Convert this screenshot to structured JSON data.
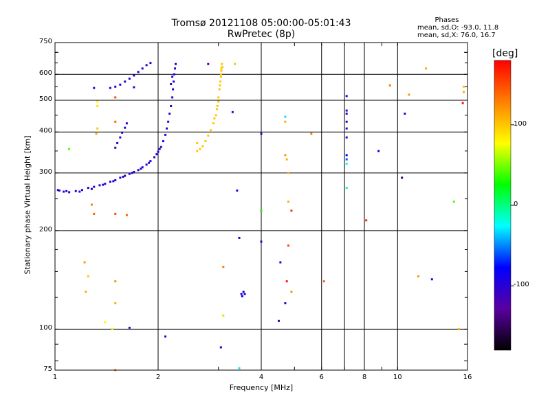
{
  "header": {
    "title": "Tromsø 20121108 05:00:00-05:01:43",
    "subtitle": "RwPretec (8p)",
    "stats_heading": "Phases",
    "stats_line1": "mean, sd,O: -93.0, 11.8",
    "stats_line2": "mean, sd,X:  76.0, 16.7"
  },
  "colorbar": {
    "unit_label": "[deg]",
    "range": [
      -180,
      180
    ],
    "ticks": [
      "100",
      "0",
      "-100"
    ],
    "tick_values": [
      100,
      0,
      -100
    ],
    "colors": [
      "#000000",
      "#5a00a0",
      "#0000ff",
      "#00ffff",
      "#00ff00",
      "#ffff00",
      "#ff8000",
      "#ff0000"
    ]
  },
  "chart_data": {
    "type": "scatter",
    "title": "Tromsø 20121108 05:00:00-05:01:43",
    "subtitle": "RwPretec (8p)",
    "xlabel": "Frequency [MHz]",
    "ylabel": "Stationary phase Virtual Height [km]",
    "x_scale": "log",
    "y_scale": "log",
    "xlim": [
      1,
      16
    ],
    "ylim": [
      75,
      750
    ],
    "x_ticks": [
      1,
      2,
      4,
      6,
      8,
      10,
      16
    ],
    "x_tick_labels": [
      "1",
      "2",
      "4",
      "6",
      "8",
      "10",
      "16"
    ],
    "y_ticks": [
      75,
      100,
      200,
      300,
      400,
      500,
      600,
      750
    ],
    "y_tick_labels": [
      "75",
      "100",
      "200",
      "300",
      "400",
      "500",
      "600",
      "750"
    ],
    "x_grid": [
      1,
      2,
      4,
      6,
      7,
      8,
      10,
      16
    ],
    "y_grid": [
      100,
      200,
      300,
      400,
      500,
      600
    ],
    "grid": true,
    "series": [
      {
        "values": [
          [
            1.03,
            265,
            -100
          ],
          [
            1.06,
            263,
            -100
          ],
          [
            1.1,
            262,
            -100
          ],
          [
            1.15,
            264,
            -100
          ],
          [
            1.2,
            266,
            -100
          ],
          [
            1.25,
            270,
            -100
          ],
          [
            1.3,
            272,
            -100
          ],
          [
            1.35,
            275,
            -100
          ],
          [
            1.4,
            278,
            -100
          ],
          [
            1.45,
            282,
            -100
          ],
          [
            1.5,
            285,
            -100
          ],
          [
            1.55,
            290,
            -100
          ],
          [
            1.6,
            294,
            -100
          ],
          [
            1.65,
            298,
            -100
          ],
          [
            1.7,
            302,
            -100
          ],
          [
            1.75,
            306,
            -100
          ],
          [
            1.8,
            312,
            -100
          ],
          [
            1.85,
            318,
            -100
          ],
          [
            1.9,
            326,
            -100
          ],
          [
            1.95,
            335,
            -100
          ],
          [
            2.0,
            348,
            -100
          ],
          [
            2.04,
            360,
            -100
          ],
          [
            2.07,
            375,
            -100
          ],
          [
            2.1,
            392,
            -100
          ],
          [
            2.12,
            410,
            -100
          ],
          [
            2.14,
            430,
            -100
          ],
          [
            2.16,
            455,
            -100
          ],
          [
            2.18,
            480,
            -100
          ],
          [
            2.2,
            510,
            -100
          ],
          [
            2.21,
            540,
            -100
          ],
          [
            2.22,
            570,
            -100
          ],
          [
            2.23,
            600,
            -100
          ],
          [
            2.24,
            625,
            -100
          ],
          [
            2.25,
            645,
            -100
          ],
          [
            2.2,
            590,
            -100
          ],
          [
            2.18,
            560,
            -100
          ],
          [
            1.5,
            358,
            -100
          ],
          [
            1.52,
            370,
            -100
          ],
          [
            1.55,
            385,
            -100
          ],
          [
            1.57,
            398,
            -100
          ],
          [
            1.6,
            412,
            -100
          ],
          [
            1.62,
            425,
            -100
          ],
          [
            1.45,
            545,
            -100
          ],
          [
            1.5,
            550,
            -100
          ],
          [
            1.55,
            558,
            -100
          ],
          [
            1.6,
            570,
            -100
          ],
          [
            1.65,
            582,
            -100
          ],
          [
            1.7,
            595,
            -100
          ],
          [
            1.75,
            610,
            -100
          ],
          [
            1.8,
            625,
            -100
          ],
          [
            1.85,
            640,
            -100
          ],
          [
            1.9,
            650,
            -100
          ],
          [
            1.3,
            545,
            -100
          ],
          [
            1.7,
            548,
            -100
          ],
          [
            1.02,
            266,
            -100
          ],
          [
            1.08,
            264,
            -100
          ],
          [
            1.18,
            263,
            -100
          ],
          [
            1.28,
            268,
            -100
          ],
          [
            1.38,
            276,
            -100
          ],
          [
            1.48,
            283,
            -100
          ],
          [
            1.58,
            292,
            -100
          ],
          [
            1.68,
            300,
            -100
          ],
          [
            1.78,
            309,
            -100
          ],
          [
            1.88,
            322,
            -100
          ],
          [
            1.98,
            342,
            -100
          ],
          [
            2.02,
            355,
            -100
          ]
        ]
      },
      {
        "values": [
          [
            2.6,
            350,
            100
          ],
          [
            2.7,
            362,
            100
          ],
          [
            2.75,
            375,
            100
          ],
          [
            2.8,
            390,
            100
          ],
          [
            2.85,
            405,
            100
          ],
          [
            2.9,
            425,
            100
          ],
          [
            2.95,
            450,
            100
          ],
          [
            2.98,
            480,
            100
          ],
          [
            3.0,
            510,
            100
          ],
          [
            3.02,
            540,
            100
          ],
          [
            3.04,
            570,
            100
          ],
          [
            3.05,
            600,
            100
          ],
          [
            3.06,
            625,
            100
          ],
          [
            3.07,
            645,
            100
          ],
          [
            2.6,
            370,
            100
          ],
          [
            2.65,
            355,
            100
          ],
          [
            2.92,
            440,
            100
          ],
          [
            2.97,
            470,
            100
          ],
          [
            3.0,
            495,
            100
          ],
          [
            3.03,
            555,
            100
          ],
          [
            3.05,
            590,
            100
          ],
          [
            3.06,
            615,
            100
          ],
          [
            3.08,
            632,
            100
          ],
          [
            3.35,
            645,
            100
          ]
        ]
      },
      {
        "values": [
          [
            1.1,
            355,
            40
          ],
          [
            1.22,
            160,
            120
          ],
          [
            1.25,
            145,
            100
          ],
          [
            1.3,
            225,
            140
          ],
          [
            1.28,
            240,
            130
          ],
          [
            1.33,
            495,
            80
          ],
          [
            1.33,
            480,
            90
          ],
          [
            1.33,
            410,
            100
          ],
          [
            1.32,
            395,
            110
          ],
          [
            1.23,
            130,
            110
          ],
          [
            1.5,
            225,
            150
          ],
          [
            1.5,
            140,
            120
          ],
          [
            1.5,
            120,
            110
          ],
          [
            1.5,
            510,
            150
          ],
          [
            1.5,
            430,
            140
          ],
          [
            1.4,
            105,
            80
          ],
          [
            1.47,
            100,
            70
          ],
          [
            1.5,
            75,
            130
          ],
          [
            1.62,
            223,
            140
          ],
          [
            1.65,
            101,
            -110
          ],
          [
            2.1,
            95,
            -100
          ],
          [
            2.8,
            645,
            -120
          ],
          [
            3.05,
            88,
            -90
          ],
          [
            3.1,
            110,
            60
          ],
          [
            3.1,
            155,
            130
          ],
          [
            3.3,
            460,
            -100
          ],
          [
            3.4,
            265,
            -100
          ],
          [
            3.45,
            190,
            -100
          ],
          [
            3.45,
            76,
            -30
          ],
          [
            3.5,
            128,
            -90
          ],
          [
            3.55,
            130,
            -90
          ],
          [
            3.52,
            126,
            -90
          ],
          [
            3.58,
            128,
            -90
          ],
          [
            4.0,
            395,
            -100
          ],
          [
            4.0,
            230,
            30
          ],
          [
            4.0,
            185,
            -100
          ],
          [
            4.5,
            106,
            -110
          ],
          [
            4.55,
            160,
            -100
          ],
          [
            4.7,
            445,
            -30
          ],
          [
            4.7,
            430,
            110
          ],
          [
            4.7,
            340,
            120
          ],
          [
            4.75,
            330,
            110
          ],
          [
            4.8,
            300,
            110
          ],
          [
            4.8,
            245,
            110
          ],
          [
            4.9,
            230,
            160
          ],
          [
            4.75,
            140,
            170
          ],
          [
            4.8,
            180,
            150
          ],
          [
            4.9,
            130,
            120
          ],
          [
            4.7,
            120,
            -100
          ],
          [
            5.6,
            395,
            130
          ],
          [
            6.1,
            140,
            140
          ],
          [
            7.1,
            515,
            -100
          ],
          [
            7.1,
            465,
            -100
          ],
          [
            7.1,
            455,
            -100
          ],
          [
            7.1,
            430,
            -100
          ],
          [
            7.1,
            410,
            -100
          ],
          [
            7.1,
            385,
            -100
          ],
          [
            7.1,
            340,
            -80
          ],
          [
            7.1,
            330,
            -60
          ],
          [
            7.1,
            320,
            -20
          ],
          [
            7.1,
            270,
            -10
          ],
          [
            8.1,
            215,
            165
          ],
          [
            8.8,
            350,
            -80
          ],
          [
            9.5,
            555,
            130
          ],
          [
            10.3,
            290,
            -150
          ],
          [
            10.5,
            455,
            -100
          ],
          [
            10.8,
            520,
            120
          ],
          [
            11.5,
            145,
            120
          ],
          [
            12.1,
            625,
            110
          ],
          [
            12.6,
            142,
            -100
          ],
          [
            14.6,
            245,
            40
          ],
          [
            15.1,
            100,
            110
          ],
          [
            15.5,
            490,
            175
          ],
          [
            15.6,
            550,
            100
          ],
          [
            15.6,
            530,
            110
          ]
        ]
      }
    ]
  }
}
